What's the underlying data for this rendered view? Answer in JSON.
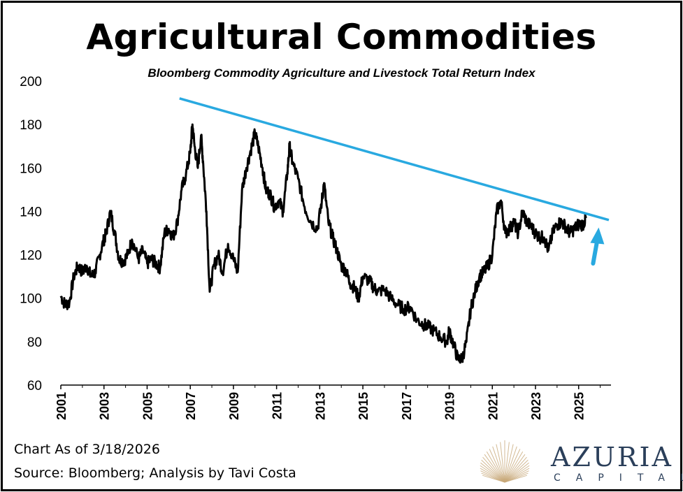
{
  "chart_data": {
    "type": "line",
    "title": "Agricultural Commodities",
    "subtitle": "Bloomberg Commodity Agriculture and Livestock Total Return Index",
    "xlabel": "",
    "ylabel": "",
    "xlim": [
      2001,
      2026.5
    ],
    "ylim": [
      60,
      200
    ],
    "x_ticks": [
      "2001",
      "2003",
      "2005",
      "2007",
      "2009",
      "2011",
      "2013",
      "2015",
      "2017",
      "2019",
      "2021",
      "2023",
      "2025"
    ],
    "y_ticks": [
      "60",
      "80",
      "100",
      "120",
      "140",
      "160",
      "180",
      "200"
    ],
    "grid": false,
    "legend": "none",
    "series": [
      {
        "color": "#000000",
        "x": [
          2001.0,
          2001.2,
          2001.4,
          2001.6,
          2001.8,
          2002.0,
          2002.2,
          2002.4,
          2002.6,
          2002.8,
          2003.0,
          2003.1,
          2003.3,
          2003.5,
          2003.7,
          2003.9,
          2004.1,
          2004.3,
          2004.6,
          2004.8,
          2005.0,
          2005.2,
          2005.4,
          2005.6,
          2005.8,
          2006.0,
          2006.2,
          2006.4,
          2006.6,
          2006.8,
          2007.0,
          2007.1,
          2007.2,
          2007.35,
          2007.5,
          2007.6,
          2007.75,
          2007.9,
          2008.1,
          2008.3,
          2008.5,
          2008.75,
          2009.0,
          2009.2,
          2009.4,
          2009.6,
          2009.8,
          2010.0,
          2010.15,
          2010.35,
          2010.5,
          2010.7,
          2010.9,
          2011.1,
          2011.3,
          2011.5,
          2011.6,
          2011.75,
          2012.0,
          2012.3,
          2012.6,
          2012.9,
          2013.1,
          2013.2,
          2013.4,
          2013.6,
          2013.8,
          2014.0,
          2014.2,
          2014.4,
          2014.6,
          2014.8,
          2015.0,
          2015.3,
          2015.5,
          2015.7,
          2016.0,
          2016.3,
          2016.6,
          2016.9,
          2017.2,
          2017.5,
          2017.8,
          2018.0,
          2018.3,
          2018.6,
          2018.9,
          2019.0,
          2019.2,
          2019.4,
          2019.6,
          2019.8,
          2020.0,
          2020.2,
          2020.4,
          2020.6,
          2020.8,
          2021.0,
          2021.2,
          2021.4,
          2021.6,
          2021.8,
          2022.0,
          2022.2,
          2022.4,
          2022.6,
          2022.8,
          2023.0,
          2023.2,
          2023.4,
          2023.6,
          2023.8,
          2024.0,
          2024.2,
          2024.4,
          2024.6,
          2024.8,
          2025.0,
          2025.2,
          2025.35
        ],
        "y": [
          101,
          97,
          98,
          110,
          115,
          112,
          115,
          110,
          112,
          120,
          127,
          130,
          140,
          130,
          118,
          117,
          120,
          127,
          118,
          122,
          116,
          118,
          116,
          114,
          130,
          132,
          128,
          135,
          150,
          157,
          167,
          180,
          170,
          160,
          175,
          162,
          140,
          103,
          115,
          120,
          112,
          125,
          118,
          112,
          150,
          160,
          168,
          176,
          170,
          160,
          150,
          148,
          142,
          145,
          140,
          158,
          170,
          162,
          155,
          142,
          135,
          132,
          145,
          153,
          135,
          128,
          122,
          115,
          113,
          107,
          105,
          100,
          110,
          108,
          105,
          103,
          104,
          100,
          97,
          95,
          96,
          90,
          88,
          87,
          85,
          82,
          80,
          85,
          79,
          72,
          72,
          80,
          95,
          103,
          110,
          112,
          115,
          120,
          140,
          145,
          130,
          132,
          135,
          130,
          140,
          135,
          133,
          130,
          128,
          128,
          122,
          130,
          134,
          135,
          133,
          130,
          132,
          134,
          134,
          137
        ]
      },
      {
        "color": "#29a9e0",
        "x": [
          2006.5,
          2026.4
        ],
        "y": [
          192,
          136
        ]
      }
    ],
    "annotations": [
      {
        "type": "arrow",
        "color": "#29a9e0",
        "x": 2025.8,
        "y_from": 116,
        "y_to": 130
      }
    ]
  },
  "footer": {
    "as_of": "Chart As of 3/18/2026",
    "source": "Source: Bloomberg; Analysis by Tavi Costa"
  },
  "logo": {
    "name": "AZURIA",
    "sub": "CAPITAL",
    "color": "#2b3f5a",
    "accent": "#c8a979"
  }
}
